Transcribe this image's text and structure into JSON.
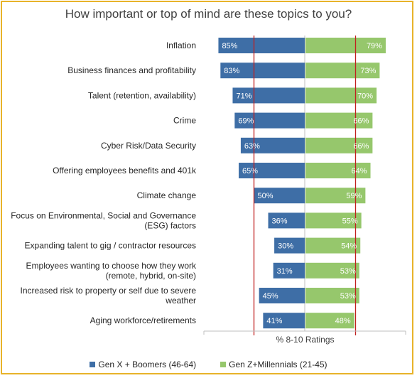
{
  "chart_data": {
    "type": "bar",
    "title": "How important or top of mind are these topics to you?",
    "xlabel": "% 8-10 Ratings",
    "categories": [
      [
        "Inflation"
      ],
      [
        "Business finances and profitability"
      ],
      [
        "Talent (retention, availability)"
      ],
      [
        "Crime"
      ],
      [
        "Cyber Risk/Data Security"
      ],
      [
        "Offering employees benefits and 401k"
      ],
      [
        "Climate change"
      ],
      [
        "Focus on Environmental, Social and Governance",
        "(ESG) factors"
      ],
      [
        "Expanding talent to gig / contractor resources"
      ],
      [
        "Employees wanting to choose how they work",
        "(remote, hybrid, on-site)"
      ],
      [
        "Increased risk to property or self due to severe",
        "weather"
      ],
      [
        "Aging workforce/retirements"
      ]
    ],
    "series": [
      {
        "name": "Gen X + Boomers (46-64)",
        "color": "#3e6ea6",
        "values": [
          85,
          83,
          71,
          69,
          63,
          65,
          50,
          36,
          30,
          31,
          45,
          41
        ],
        "labels": [
          "85%",
          "83%",
          "71%",
          "69%",
          "63%",
          "65%",
          "50%",
          "36%",
          "30%",
          "31%",
          "45%",
          "41%"
        ]
      },
      {
        "name": "Gen Z+Millennials (21-45)",
        "color": "#96c76c",
        "values": [
          79,
          73,
          70,
          66,
          66,
          64,
          59,
          55,
          54,
          53,
          53,
          48
        ],
        "labels": [
          "79%",
          "73%",
          "70%",
          "66%",
          "66%",
          "64%",
          "59%",
          "55%",
          "54%",
          "53%",
          "53%",
          "48%"
        ]
      }
    ],
    "xlim": [
      0,
      100
    ],
    "reference_lines": [
      50,
      50
    ],
    "reference_line_color": "#c0201f"
  }
}
